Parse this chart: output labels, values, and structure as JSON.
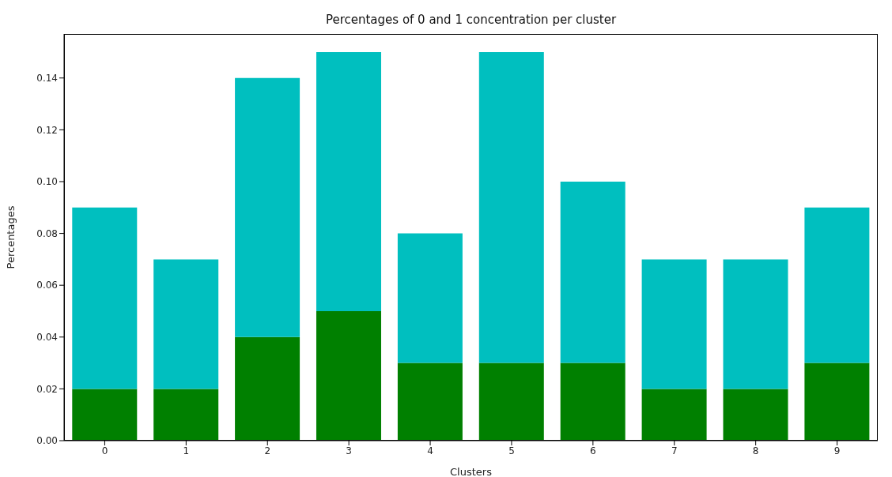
{
  "chart_data": {
    "type": "bar",
    "title": "Percentages of 0 and 1 concentration per cluster",
    "xlabel": "Clusters",
    "ylabel": "Percentages",
    "categories": [
      "0",
      "1",
      "2",
      "3",
      "4",
      "5",
      "6",
      "7",
      "8",
      "9"
    ],
    "stacked": true,
    "series": [
      {
        "color": "#008000",
        "values": [
          0.02,
          0.02,
          0.04,
          0.05,
          0.03,
          0.03,
          0.03,
          0.02,
          0.02,
          0.03
        ]
      },
      {
        "color": "#00bfbf",
        "values": [
          0.07,
          0.05,
          0.1,
          0.1,
          0.05,
          0.12,
          0.07,
          0.05,
          0.05,
          0.06
        ]
      }
    ],
    "ylim": [
      0,
      0.157
    ],
    "yticks": [
      {
        "value": 0,
        "label": "0.00"
      },
      0.02,
      0.04,
      0.06,
      0.08,
      {
        "value": 0.1,
        "label": "0.10"
      },
      0.12,
      0.14
    ],
    "grid": false
  }
}
